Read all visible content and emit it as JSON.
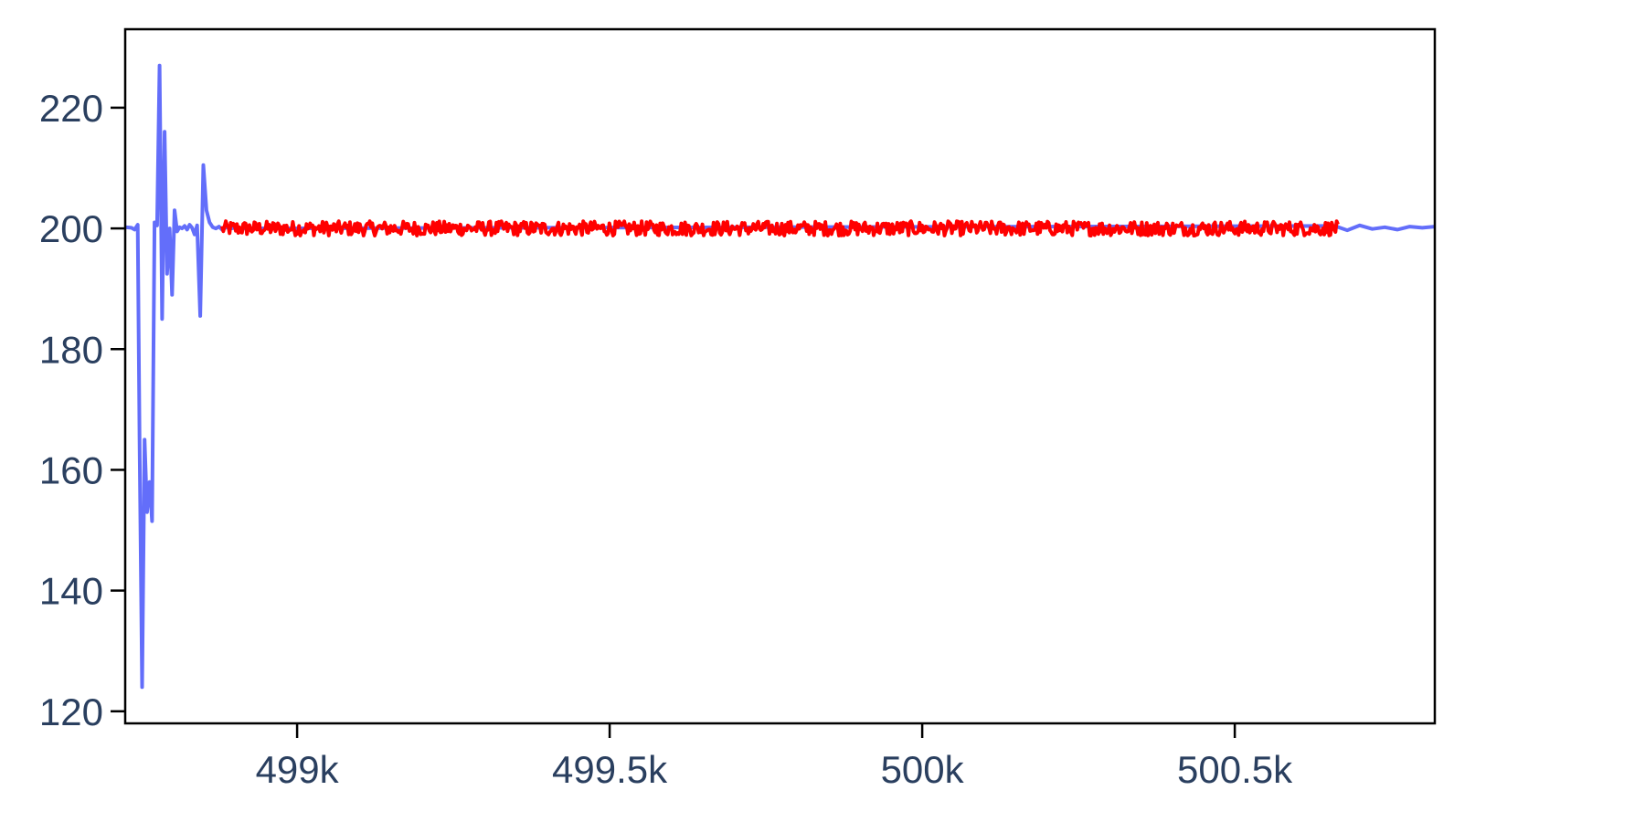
{
  "chart_data": {
    "type": "line",
    "title": "",
    "xlabel": "",
    "ylabel": "",
    "xlim": [
      498725,
      500820
    ],
    "ylim": [
      118,
      233
    ],
    "x_ticks": [
      {
        "value": 499000,
        "label": "499k"
      },
      {
        "value": 499500,
        "label": "499.5k"
      },
      {
        "value": 500000,
        "label": "500k"
      },
      {
        "value": 500500,
        "label": "500.5k"
      }
    ],
    "y_ticks": [
      {
        "value": 120,
        "label": "120"
      },
      {
        "value": 140,
        "label": "140"
      },
      {
        "value": 160,
        "label": "160"
      },
      {
        "value": 180,
        "label": "180"
      },
      {
        "value": 200,
        "label": "200"
      },
      {
        "value": 220,
        "label": "220"
      }
    ],
    "grid": false,
    "legend": "none",
    "series": [
      {
        "color": "#636efa",
        "line_width": 4,
        "description_of_shape": "unstable start then settling around 200",
        "x": [
          498725,
          498735,
          498740,
          498745,
          498748,
          498752,
          498756,
          498760,
          498764,
          498768,
          498772,
          498776,
          498780,
          498784,
          498788,
          498792,
          498796,
          498800,
          498804,
          498808,
          498812,
          498816,
          498820,
          498824,
          498828,
          498832,
          498836,
          498840,
          498845,
          498850,
          498855,
          498860,
          498865,
          498870,
          498875,
          498880,
          498885,
          498890,
          498895,
          498900,
          498905,
          500660,
          500680,
          500700,
          500720,
          500740,
          500760,
          500780,
          500800,
          500820
        ],
        "y": [
          200.2,
          200.1,
          199.8,
          200.6,
          165,
          124,
          165,
          153,
          158,
          151.5,
          201,
          200.5,
          227,
          185,
          216,
          192.5,
          200,
          189,
          203,
          199.5,
          200.2,
          200,
          200.4,
          199.8,
          200.6,
          200.1,
          199,
          200.5,
          185.5,
          210.5,
          203,
          201,
          200.2,
          200,
          200.3,
          199.8,
          200.1,
          200.2,
          200,
          200.1,
          200,
          200.4,
          199.7,
          200.5,
          199.9,
          200.2,
          199.8,
          200.3,
          200.1,
          200.3
        ]
      },
      {
        "color": "#ff0000",
        "line_width": 4,
        "description_of_shape": "dense jittery band around 200",
        "x_start": 498880,
        "x_end": 500665,
        "center": 200,
        "amplitude": 1.2,
        "n_points": 900
      }
    ]
  }
}
